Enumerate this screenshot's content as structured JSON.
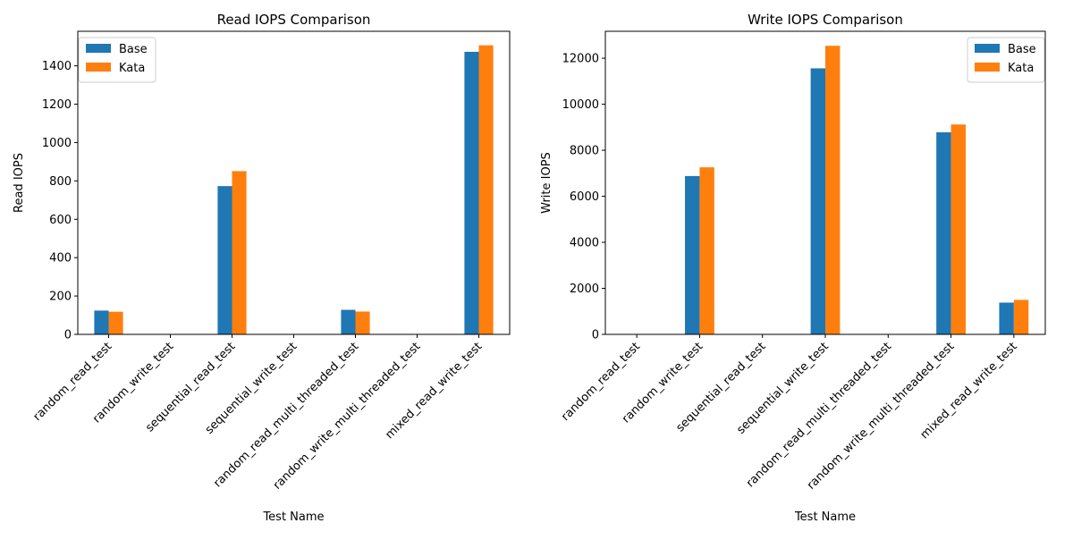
{
  "chart_data": [
    {
      "type": "bar",
      "title": "Read IOPS Comparison",
      "xlabel": "Test Name",
      "ylabel": "Read IOPS",
      "categories": [
        "random_read_test",
        "random_write_test",
        "sequential_read_test",
        "sequential_write_test",
        "random_read_multi_threaded_test",
        "random_write_multi_threaded_test",
        "mixed_read_write_test"
      ],
      "series": [
        {
          "name": "Base",
          "color": "#1f77b4",
          "values": [
            124,
            0,
            773,
            0,
            128,
            0,
            1473
          ]
        },
        {
          "name": "Kata",
          "color": "#ff7f0e",
          "values": [
            118,
            0,
            851,
            0,
            119,
            0,
            1507
          ]
        }
      ],
      "ylim": [
        0,
        1580
      ],
      "yticks": [
        0,
        200,
        400,
        600,
        800,
        1000,
        1200,
        1400
      ],
      "legend": "top-left"
    },
    {
      "type": "bar",
      "title": "Write IOPS Comparison",
      "xlabel": "Test Name",
      "ylabel": "Write IOPS",
      "categories": [
        "random_read_test",
        "random_write_test",
        "sequential_read_test",
        "sequential_write_test",
        "random_read_multi_threaded_test",
        "random_write_multi_threaded_test",
        "mixed_read_write_test"
      ],
      "series": [
        {
          "name": "Base",
          "color": "#1f77b4",
          "values": [
            0,
            6880,
            0,
            11560,
            0,
            8780,
            1380
          ]
        },
        {
          "name": "Kata",
          "color": "#ff7f0e",
          "values": [
            0,
            7260,
            0,
            12540,
            0,
            9120,
            1500
          ]
        }
      ],
      "ylim": [
        0,
        13170
      ],
      "yticks": [
        0,
        2000,
        4000,
        6000,
        8000,
        10000,
        12000
      ],
      "legend": "top-right"
    }
  ]
}
